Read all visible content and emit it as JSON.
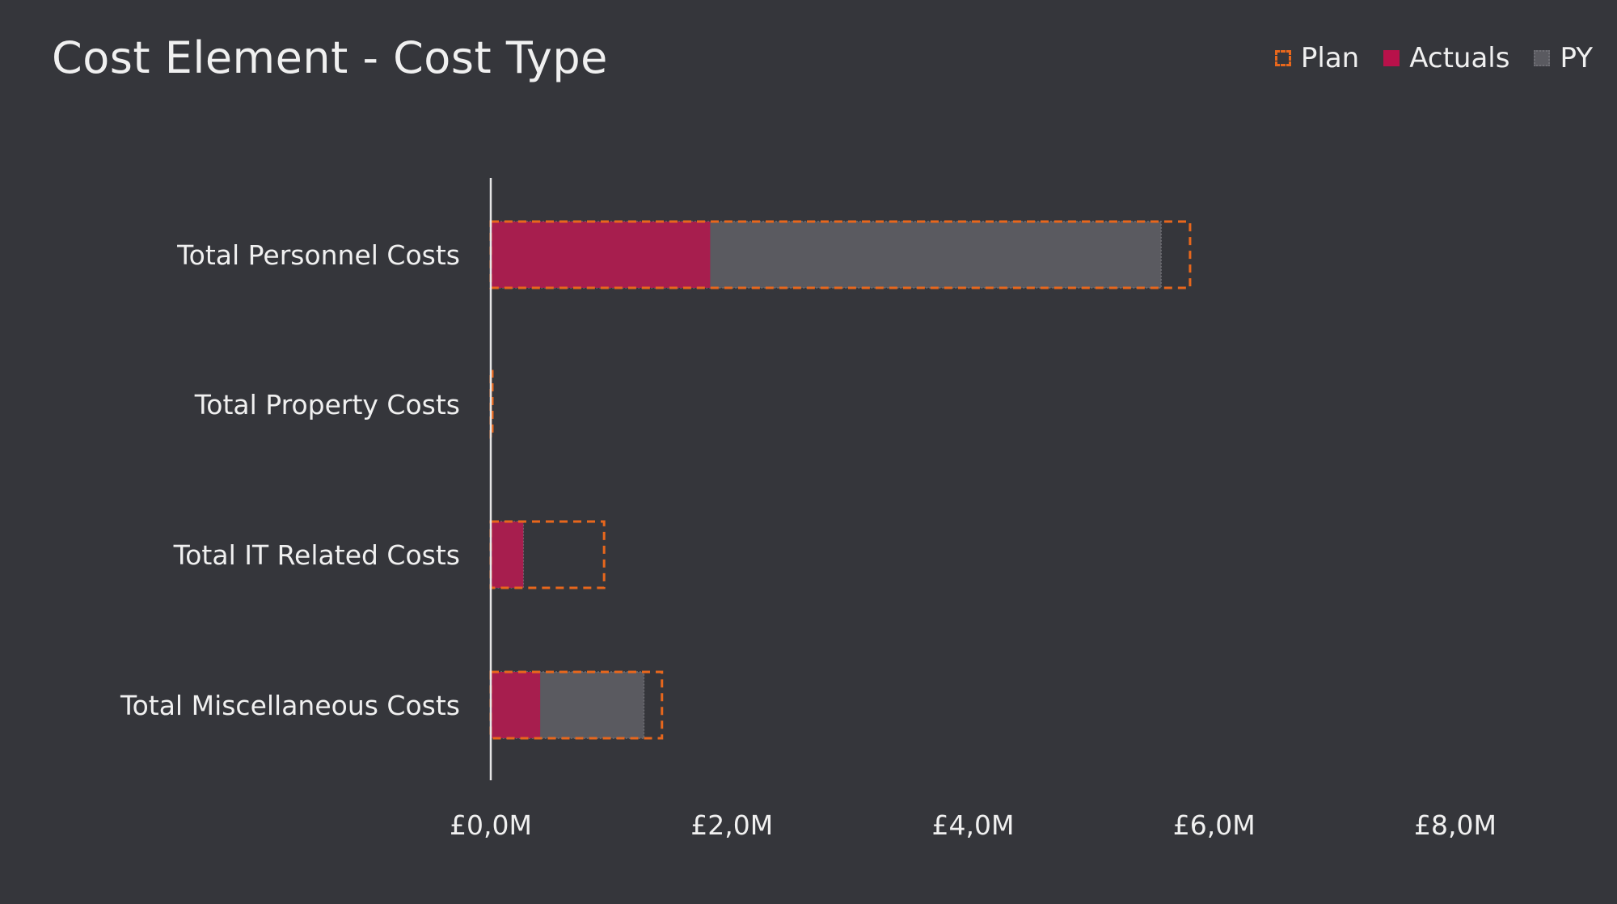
{
  "chart_data": {
    "type": "bar",
    "orientation": "horizontal",
    "title": "Cost Element - Cost Type",
    "categories": [
      "Total Personnel Costs",
      "Total Property Costs",
      "Total IT Related Costs",
      "Total Miscellaneous Costs"
    ],
    "series": [
      {
        "name": "Plan",
        "values": [
          5.8,
          0.0,
          0.94,
          1.42
        ]
      },
      {
        "name": "Actuals",
        "values": [
          1.82,
          0.0,
          0.27,
          0.41
        ]
      },
      {
        "name": "PY",
        "values": [
          5.56,
          0.0,
          0.27,
          1.27
        ]
      }
    ],
    "xlim": [
      0,
      8
    ],
    "xticks": [
      "£0,0M",
      "£2,0M",
      "£4,0M",
      "£6,0M",
      "£8,0M"
    ],
    "legend_position": "top-right",
    "grid": false,
    "colors": {
      "plan": "#e8671c",
      "actuals": "#b8114a",
      "py": "#5a5a60",
      "background": "#35363b"
    }
  }
}
